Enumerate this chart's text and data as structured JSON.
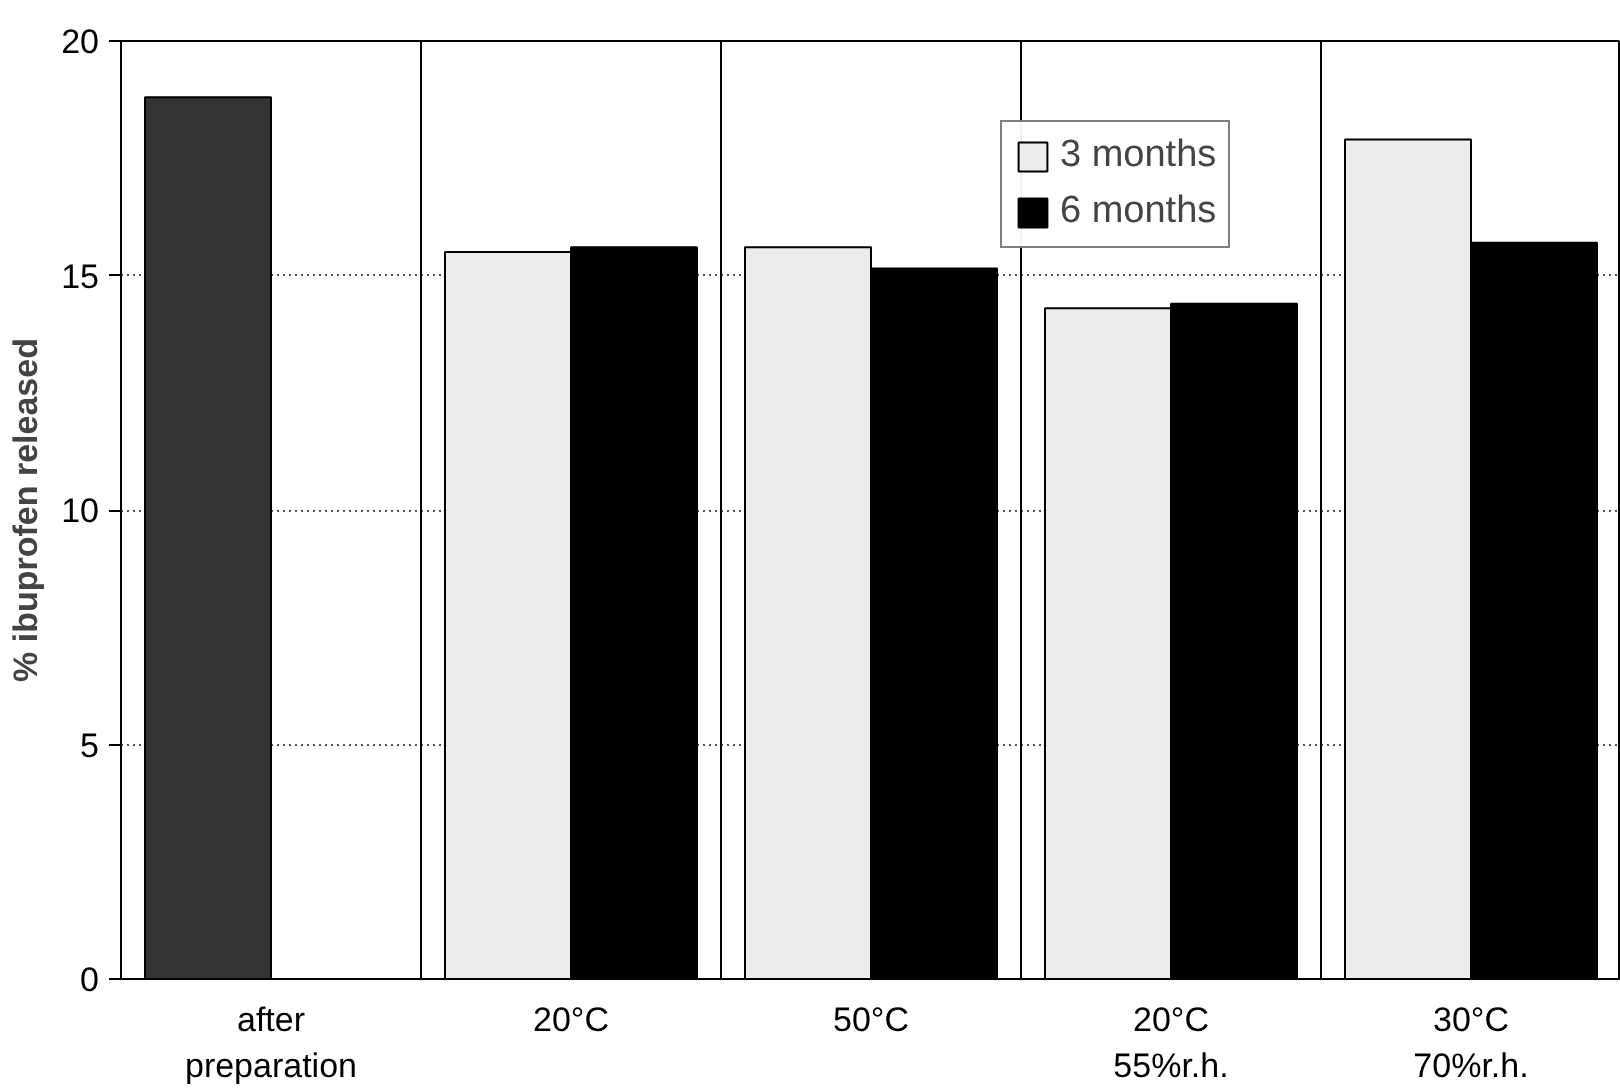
{
  "chart_data": {
    "type": "bar",
    "ylabel": "% ibuprofen released",
    "categories": [
      "after\npreparation",
      "20°C",
      "50°C",
      "20°C\n55%r.h.",
      "30°C\n70%r.h."
    ],
    "series": [
      {
        "name": "3 months",
        "color": "#ececec",
        "colors": [
          "#333333",
          "#ececec",
          "#ececec",
          "#ececec",
          "#ececec"
        ],
        "values": [
          18.8,
          15.5,
          15.6,
          14.3,
          17.9
        ]
      },
      {
        "name": "6 months",
        "color": "#000000",
        "values": [
          null,
          15.6,
          15.15,
          14.4,
          15.7
        ]
      }
    ],
    "ylim": [
      0,
      20
    ],
    "yticks": [
      0,
      5,
      10,
      15,
      20
    ],
    "grid": "y",
    "legend": "top right"
  }
}
